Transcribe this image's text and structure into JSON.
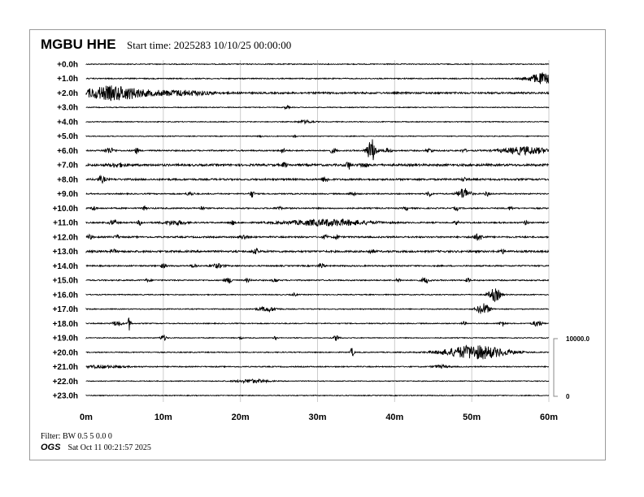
{
  "header": {
    "station": "MGBU HHE",
    "start_time": "Start time: 2025283 10/10/25 00:00:00"
  },
  "footer": {
    "filter": "Filter: BW 0.5 5 0.0 0",
    "org": "OGS",
    "timestamp": "Sat Oct 11 00:21:57 2025"
  },
  "chart_data": {
    "type": "line",
    "subtype": "helicorder",
    "grid": true,
    "trace_color": "#000000",
    "grid_color": "#cccccc",
    "x_ticks": [
      "0m",
      "10m",
      "20m",
      "30m",
      "40m",
      "50m",
      "60m"
    ],
    "xlim": [
      0,
      60
    ],
    "row_labels": [
      "+0.0h",
      "+1.0h",
      "+2.0h",
      "+3.0h",
      "+4.0h",
      "+5.0h",
      "+6.0h",
      "+7.0h",
      "+8.0h",
      "+9.0h",
      "+10.0h",
      "+11.0h",
      "+12.0h",
      "+13.0h",
      "+14.0h",
      "+15.0h",
      "+16.0h",
      "+17.0h",
      "+18.0h",
      "+19.0h",
      "+20.0h",
      "+21.0h",
      "+22.0h",
      "+23.0h"
    ],
    "scale": {
      "top_label": "10000.0",
      "bottom_label": "0",
      "max": 10000
    },
    "rows": [
      {
        "noise": 80,
        "events": []
      },
      {
        "noise": 90,
        "events": [
          [
            59.1,
            900,
            1.8
          ]
        ]
      },
      {
        "noise": 150,
        "events": [
          [
            2,
            850,
            3
          ],
          [
            5,
            700,
            2.5
          ],
          [
            10,
            350,
            4
          ],
          [
            14,
            220,
            3
          ]
        ]
      },
      {
        "noise": 70,
        "events": [
          [
            26,
            300,
            0.3
          ]
        ]
      },
      {
        "noise": 70,
        "events": [
          [
            28.5,
            250,
            1
          ]
        ]
      },
      {
        "noise": 70,
        "events": [
          [
            22.5,
            250,
            0.2
          ],
          [
            27,
            300,
            0.2
          ]
        ]
      },
      {
        "noise": 110,
        "events": [
          [
            3,
            500,
            0.6
          ],
          [
            6.5,
            500,
            0.3
          ],
          [
            25.5,
            450,
            0.3
          ],
          [
            32,
            400,
            0.4
          ],
          [
            37,
            2000,
            0.6
          ],
          [
            39,
            350,
            0.5
          ],
          [
            44.5,
            350,
            0.4
          ],
          [
            49,
            300,
            0.3
          ],
          [
            57,
            650,
            3
          ]
        ]
      },
      {
        "noise": 180,
        "events": [
          [
            4,
            300,
            1
          ],
          [
            25.7,
            400,
            0.3
          ],
          [
            34,
            700,
            0.3
          ],
          [
            36,
            350,
            0.5
          ]
        ]
      },
      {
        "noise": 150,
        "events": [
          [
            2,
            500,
            0.5
          ],
          [
            31,
            500,
            0.4
          ],
          [
            49,
            300,
            0.3
          ]
        ]
      },
      {
        "noise": 100,
        "events": [
          [
            13.5,
            300,
            0.5
          ],
          [
            21.5,
            600,
            0.3
          ],
          [
            34.5,
            400,
            0.4
          ],
          [
            44.5,
            500,
            0.3
          ],
          [
            49,
            1000,
            0.8
          ],
          [
            52,
            450,
            0.3
          ]
        ]
      },
      {
        "noise": 110,
        "events": [
          [
            1,
            400,
            0.3
          ],
          [
            7.5,
            300,
            0.3
          ],
          [
            15,
            300,
            0.3
          ],
          [
            25,
            300,
            0.3
          ],
          [
            41.5,
            300,
            0.3
          ],
          [
            48,
            350,
            0.3
          ],
          [
            55,
            300,
            0.3
          ]
        ]
      },
      {
        "noise": 110,
        "events": [
          [
            3.5,
            400,
            0.5
          ],
          [
            7,
            450,
            0.3
          ],
          [
            11.5,
            400,
            1.5
          ],
          [
            19,
            350,
            0.3
          ],
          [
            31.5,
            550,
            5.5
          ],
          [
            48,
            300,
            0.3
          ],
          [
            57,
            350,
            0.3
          ]
        ]
      },
      {
        "noise": 130,
        "events": [
          [
            0.5,
            400,
            0.3
          ],
          [
            4,
            350,
            0.3
          ],
          [
            20.5,
            400,
            0.5
          ],
          [
            31,
            350,
            0.3
          ],
          [
            32.5,
            350,
            0.3
          ],
          [
            50.8,
            500,
            0.7
          ]
        ]
      },
      {
        "noise": 160,
        "events": [
          [
            3.5,
            300,
            0.4
          ],
          [
            22,
            350,
            0.4
          ],
          [
            37,
            300,
            0.4
          ],
          [
            54,
            300,
            0.4
          ]
        ]
      },
      {
        "noise": 110,
        "events": [
          [
            10,
            350,
            0.4
          ],
          [
            14,
            400,
            0.3
          ],
          [
            17,
            350,
            0.8
          ],
          [
            30.5,
            450,
            0.4
          ]
        ]
      },
      {
        "noise": 100,
        "events": [
          [
            8,
            300,
            0.3
          ],
          [
            18.5,
            450,
            0.5
          ],
          [
            21,
            350,
            0.3
          ],
          [
            24.5,
            350,
            0.3
          ],
          [
            40.5,
            300,
            0.3
          ],
          [
            44,
            500,
            0.5
          ],
          [
            49.5,
            350,
            0.3
          ]
        ]
      },
      {
        "noise": 80,
        "events": [
          [
            27,
            250,
            0.3
          ],
          [
            53,
            1100,
            0.8
          ]
        ]
      },
      {
        "noise": 80,
        "events": [
          [
            23.5,
            400,
            1.2
          ],
          [
            51.5,
            1000,
            0.8
          ]
        ]
      },
      {
        "noise": 80,
        "events": [
          [
            4,
            450,
            0.6
          ],
          [
            5.6,
            1200,
            0.2
          ],
          [
            49,
            300,
            0.3
          ],
          [
            54,
            450,
            0.4
          ],
          [
            58.5,
            500,
            0.6
          ]
        ]
      },
      {
        "noise": 70,
        "events": [
          [
            10,
            500,
            0.4
          ],
          [
            20,
            300,
            0.2
          ],
          [
            24.5,
            300,
            0.2
          ],
          [
            32.5,
            500,
            0.4
          ]
        ]
      },
      {
        "noise": 80,
        "events": [
          [
            34.5,
            900,
            0.2
          ],
          [
            50.5,
            1200,
            4
          ]
        ]
      },
      {
        "noise": 90,
        "events": [
          [
            2,
            200,
            3
          ],
          [
            46,
            250,
            1
          ]
        ]
      },
      {
        "noise": 70,
        "events": [
          [
            21.5,
            300,
            2
          ]
        ]
      },
      {
        "noise": 70,
        "events": []
      }
    ]
  }
}
